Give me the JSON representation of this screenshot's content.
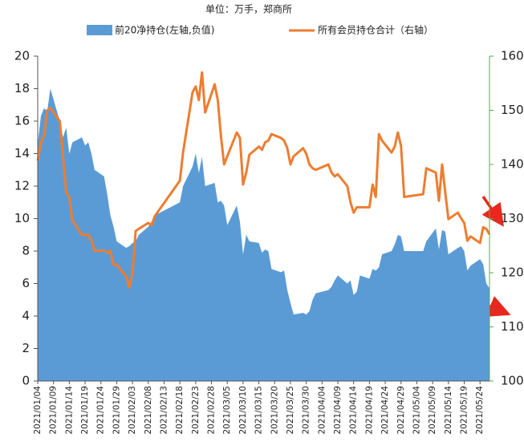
{
  "chart_data": {
    "type": "area-line",
    "title": "单位：万手，郑商所",
    "x": [
      "2021/01/04",
      "2021/01/05",
      "2021/01/06",
      "2021/01/07",
      "2021/01/08",
      "2021/01/11",
      "2021/01/12",
      "2021/01/13",
      "2021/01/14",
      "2021/01/15",
      "2021/01/18",
      "2021/01/19",
      "2021/01/20",
      "2021/01/21",
      "2021/01/22",
      "2021/01/25",
      "2021/01/26",
      "2021/01/27",
      "2021/01/28",
      "2021/01/29",
      "2021/02/01",
      "2021/02/02",
      "2021/02/03",
      "2021/02/04",
      "2021/02/05",
      "2021/02/08",
      "2021/02/09",
      "2021/02/10",
      "2021/02/18",
      "2021/02/19",
      "2021/02/22",
      "2021/02/23",
      "2021/02/24",
      "2021/02/25",
      "2021/02/26",
      "2021/03/01",
      "2021/03/02",
      "2021/03/03",
      "2021/03/04",
      "2021/03/05",
      "2021/03/08",
      "2021/03/09",
      "2021/03/10",
      "2021/03/11",
      "2021/03/12",
      "2021/03/15",
      "2021/03/16",
      "2021/03/17",
      "2021/03/18",
      "2021/03/19",
      "2021/03/22",
      "2021/03/23",
      "2021/03/24",
      "2021/03/25",
      "2021/03/26",
      "2021/03/29",
      "2021/03/30",
      "2021/03/31",
      "2021/04/01",
      "2021/04/02",
      "2021/04/06",
      "2021/04/07",
      "2021/04/08",
      "2021/04/09",
      "2021/04/12",
      "2021/04/13",
      "2021/04/14",
      "2021/04/15",
      "2021/04/16",
      "2021/04/19",
      "2021/04/20",
      "2021/04/21",
      "2021/04/22",
      "2021/04/23",
      "2021/04/26",
      "2021/04/27",
      "2021/04/28",
      "2021/04/29",
      "2021/04/30",
      "2021/05/06",
      "2021/05/07",
      "2021/05/10",
      "2021/05/11",
      "2021/05/12",
      "2021/05/13",
      "2021/05/14",
      "2021/05/17",
      "2021/05/18",
      "2021/05/19",
      "2021/05/20",
      "2021/05/21",
      "2021/05/24",
      "2021/05/25",
      "2021/05/26",
      "2021/05/27"
    ],
    "series": [
      {
        "name": "前20净持仓(左轴,负值)",
        "kind": "area",
        "color": "#5b9bd5",
        "axis": "y",
        "values": [
          14.6,
          16.3,
          16.8,
          16.6,
          18.0,
          16.0,
          15.0,
          15.6,
          14.0,
          14.7,
          15.0,
          14.5,
          14.7,
          14.0,
          13.0,
          12.6,
          11.5,
          10.2,
          9.5,
          8.6,
          8.2,
          8.3,
          8.5,
          8.6,
          9.0,
          9.5,
          9.8,
          10.2,
          11.0,
          12.0,
          13.2,
          14.0,
          12.8,
          13.8,
          12.0,
          12.2,
          11.0,
          11.1,
          10.8,
          9.6,
          10.8,
          9.8,
          7.8,
          9.0,
          8.6,
          8.5,
          7.9,
          8.1,
          8.0,
          6.9,
          6.7,
          6.8,
          5.6,
          4.8,
          4.1,
          4.2,
          4.1,
          4.3,
          5.0,
          5.4,
          5.6,
          5.8,
          6.2,
          6.5,
          6.0,
          6.2,
          5.3,
          5.5,
          6.5,
          6.3,
          6.9,
          6.8,
          7.0,
          7.8,
          8.0,
          8.4,
          9.0,
          8.9,
          8.0,
          8.0,
          8.6,
          9.4,
          8.1,
          9.3,
          9.2,
          7.8,
          8.2,
          8.3,
          8.0,
          6.8,
          7.1,
          7.5,
          7.2,
          6.0,
          5.7
        ]
      },
      {
        "name": "所有会员持仓合计（右轴）",
        "kind": "line",
        "color": "#ed7d31",
        "axis": "y2",
        "values": [
          140.7,
          144,
          145.2,
          150,
          150.4,
          148,
          141.5,
          134.8,
          134,
          129.6,
          127,
          127,
          127,
          126,
          124,
          124.1,
          123.7,
          124,
          121.5,
          121.5,
          119.3,
          117.3,
          120,
          127.7,
          128.1,
          129.2,
          128.7,
          130.4,
          137,
          142.2,
          153.3,
          154.4,
          151.9,
          157,
          149.6,
          154.8,
          151.9,
          145.2,
          140,
          141.5,
          145.9,
          144.9,
          136.3,
          138.5,
          141.8,
          143.3,
          142.7,
          144.1,
          144.4,
          145.6,
          144.9,
          144.4,
          143,
          140,
          141.5,
          143,
          142,
          140,
          139.3,
          139,
          140,
          138.5,
          137.8,
          138.2,
          136,
          133,
          131.1,
          132.1,
          132.1,
          132.1,
          136.3,
          134,
          145.6,
          144.4,
          142.2,
          143.3,
          145.9,
          143.4,
          134,
          134.5,
          139.3,
          138.5,
          133.3,
          140,
          134.8,
          129.9,
          131.1,
          130.1,
          129.2,
          125.9,
          126.7,
          125.5,
          128.4,
          128.1,
          127.1
        ]
      }
    ],
    "xlim": [
      "2021/01/04",
      "2021/05/27"
    ],
    "xticks": [
      "2021/01/04",
      "2021/01/09",
      "2021/01/14",
      "2021/01/19",
      "2021/01/24",
      "2021/01/29",
      "2021/02/03",
      "2021/02/08",
      "2021/02/13",
      "2021/02/18",
      "2021/02/23",
      "2021/02/28",
      "2021/03/05",
      "2021/03/10",
      "2021/03/15",
      "2021/03/20",
      "2021/03/25",
      "2021/03/30",
      "2021/04/04",
      "2021/04/09",
      "2021/04/14",
      "2021/04/19",
      "2021/04/24",
      "2021/04/29",
      "2021/05/04",
      "2021/05/09",
      "2021/05/14",
      "2021/05/19",
      "2021/05/24"
    ],
    "ylim": [
      0,
      20
    ],
    "yticks": [
      0,
      2,
      4,
      6,
      8,
      10,
      12,
      14,
      16,
      18,
      20
    ],
    "y2lim": [
      100,
      160
    ],
    "y2ticks": [
      100,
      110,
      120,
      130,
      140,
      150,
      160
    ]
  }
}
